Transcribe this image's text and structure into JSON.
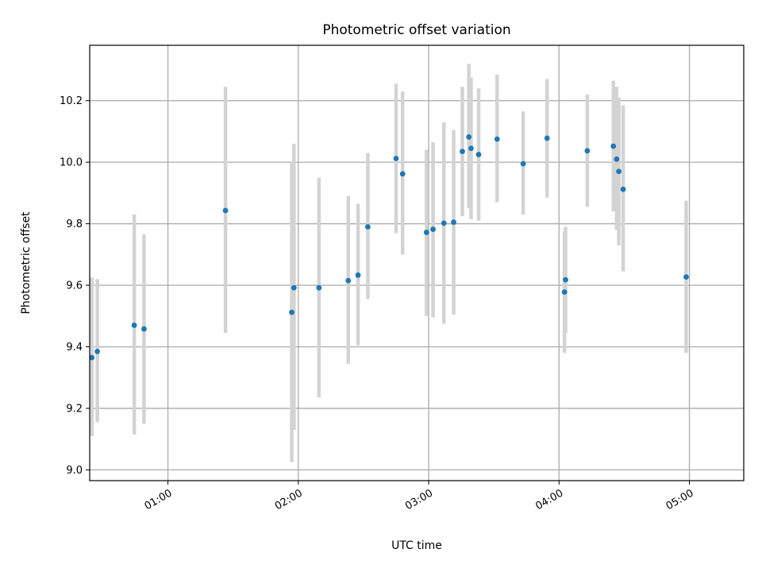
{
  "chart_data": {
    "type": "scatter",
    "title": "Photometric offset variation",
    "xlabel": "UTC time",
    "ylabel": "Photometric offset",
    "xlim_minutes": [
      24,
      325
    ],
    "ylim": [
      8.965,
      10.38
    ],
    "grid": true,
    "x_ticks": [
      {
        "minutes": 60,
        "label": "01:00"
      },
      {
        "minutes": 120,
        "label": "02:00"
      },
      {
        "minutes": 180,
        "label": "03:00"
      },
      {
        "minutes": 240,
        "label": "04:00"
      },
      {
        "minutes": 300,
        "label": "05:00"
      }
    ],
    "y_ticks": [
      {
        "value": 9.0,
        "label": "9.0"
      },
      {
        "value": 9.2,
        "label": "9.2"
      },
      {
        "value": 9.4,
        "label": "9.4"
      },
      {
        "value": 9.6,
        "label": "9.6"
      },
      {
        "value": 9.8,
        "label": "9.8"
      },
      {
        "value": 10.0,
        "label": "10.0"
      },
      {
        "value": 10.2,
        "label": "10.2"
      }
    ],
    "series": [
      {
        "name": "offset",
        "points": [
          {
            "t": 25.0,
            "y": 9.365,
            "lo": 9.11,
            "hi": 9.625
          },
          {
            "t": 27.5,
            "y": 9.385,
            "lo": 9.155,
            "hi": 9.62
          },
          {
            "t": 44.5,
            "y": 9.47,
            "lo": 9.115,
            "hi": 9.83
          },
          {
            "t": 49.0,
            "y": 9.458,
            "lo": 9.15,
            "hi": 9.765
          },
          {
            "t": 86.5,
            "y": 9.843,
            "lo": 9.445,
            "hi": 10.245
          },
          {
            "t": 117.0,
            "y": 9.512,
            "lo": 9.025,
            "hi": 10.0
          },
          {
            "t": 118.0,
            "y": 9.592,
            "lo": 9.13,
            "hi": 10.06
          },
          {
            "t": 129.5,
            "y": 9.592,
            "lo": 9.235,
            "hi": 9.95
          },
          {
            "t": 143.0,
            "y": 9.615,
            "lo": 9.345,
            "hi": 9.89
          },
          {
            "t": 147.5,
            "y": 9.633,
            "lo": 9.405,
            "hi": 9.865
          },
          {
            "t": 152.0,
            "y": 9.79,
            "lo": 9.555,
            "hi": 10.03
          },
          {
            "t": 165.0,
            "y": 10.012,
            "lo": 9.77,
            "hi": 10.255
          },
          {
            "t": 168.0,
            "y": 9.962,
            "lo": 9.7,
            "hi": 10.23
          },
          {
            "t": 179.0,
            "y": 9.772,
            "lo": 9.5,
            "hi": 10.04
          },
          {
            "t": 182.0,
            "y": 9.782,
            "lo": 9.495,
            "hi": 10.065
          },
          {
            "t": 187.0,
            "y": 9.802,
            "lo": 9.475,
            "hi": 10.13
          },
          {
            "t": 191.5,
            "y": 9.805,
            "lo": 9.505,
            "hi": 10.105
          },
          {
            "t": 195.5,
            "y": 10.035,
            "lo": 9.825,
            "hi": 10.245
          },
          {
            "t": 198.5,
            "y": 10.082,
            "lo": 9.85,
            "hi": 10.32
          },
          {
            "t": 199.5,
            "y": 10.045,
            "lo": 9.815,
            "hi": 10.275
          },
          {
            "t": 203.0,
            "y": 10.025,
            "lo": 9.81,
            "hi": 10.24
          },
          {
            "t": 211.5,
            "y": 10.075,
            "lo": 9.87,
            "hi": 10.285
          },
          {
            "t": 223.5,
            "y": 9.995,
            "lo": 9.83,
            "hi": 10.165
          },
          {
            "t": 234.5,
            "y": 10.078,
            "lo": 9.885,
            "hi": 10.27
          },
          {
            "t": 242.5,
            "y": 9.578,
            "lo": 9.38,
            "hi": 9.775
          },
          {
            "t": 243.0,
            "y": 9.618,
            "lo": 9.445,
            "hi": 9.79
          },
          {
            "t": 253.0,
            "y": 10.037,
            "lo": 9.855,
            "hi": 10.22
          },
          {
            "t": 265.0,
            "y": 10.052,
            "lo": 9.84,
            "hi": 10.265
          },
          {
            "t": 266.5,
            "y": 10.01,
            "lo": 9.78,
            "hi": 10.245
          },
          {
            "t": 267.5,
            "y": 9.97,
            "lo": 9.73,
            "hi": 10.21
          },
          {
            "t": 269.5,
            "y": 9.912,
            "lo": 9.645,
            "hi": 10.185
          },
          {
            "t": 298.5,
            "y": 9.627,
            "lo": 9.38,
            "hi": 9.875
          }
        ]
      }
    ]
  },
  "colors": {
    "marker": "#1f77b4",
    "errorbar": "#d3d3d3",
    "grid": "#b0b0b0",
    "axis": "#000000"
  }
}
